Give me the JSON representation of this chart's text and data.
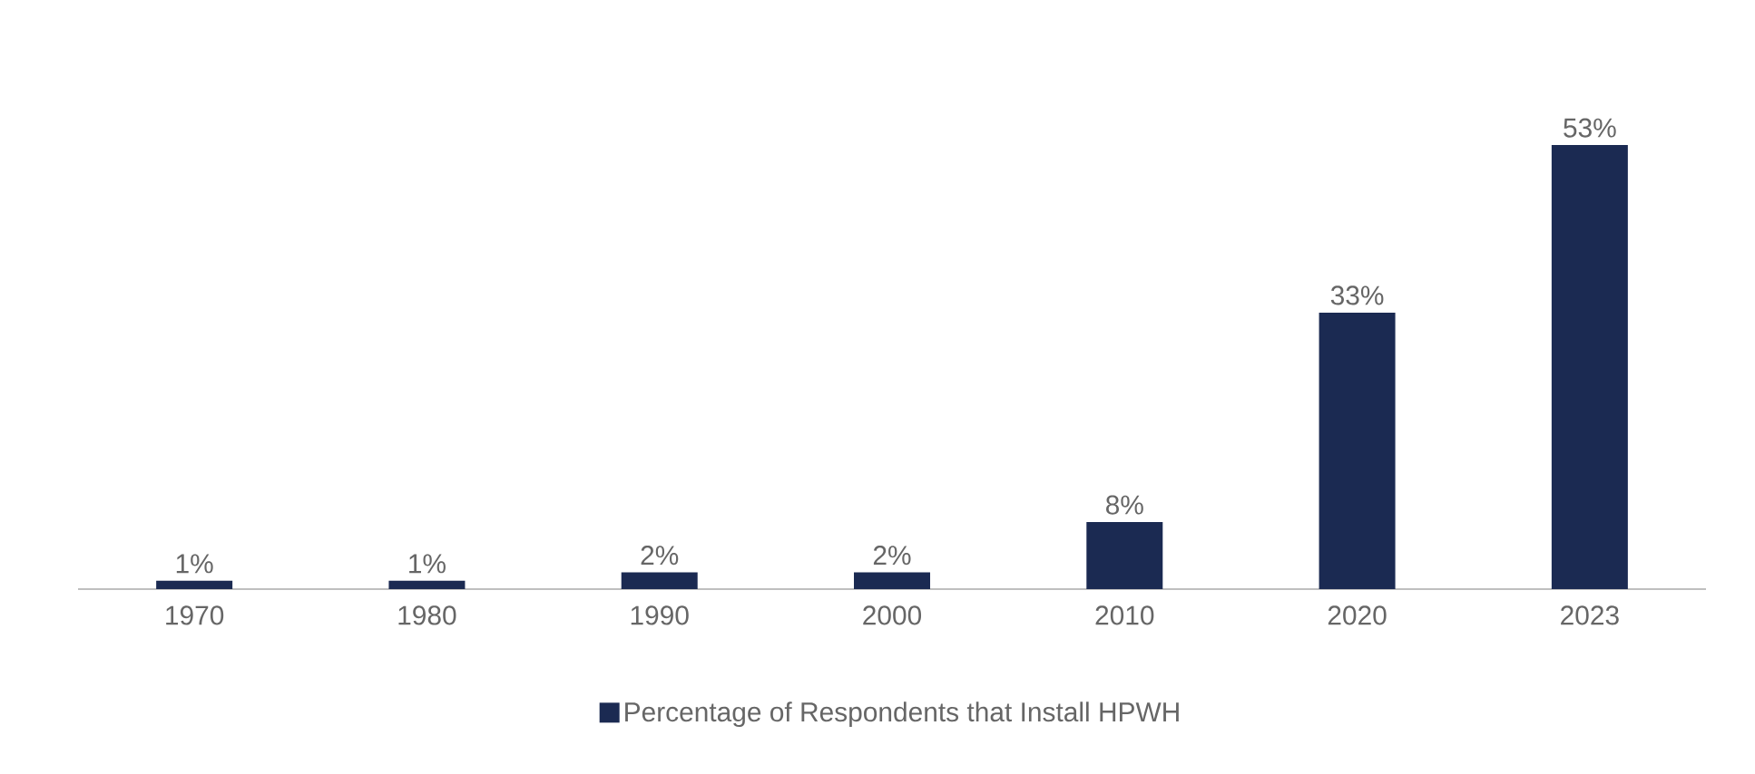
{
  "chart_data": {
    "type": "bar",
    "categories": [
      "1970",
      "1980",
      "1990",
      "2000",
      "2010",
      "2020",
      "2023"
    ],
    "series": [
      {
        "name": "Percentage of Respondents that Install HPWH",
        "color": "#1b2a52",
        "values": [
          1,
          1,
          2,
          2,
          8,
          33,
          53
        ],
        "value_labels": [
          "1%",
          "1%",
          "2%",
          "2%",
          "8%",
          "33%",
          "53%"
        ]
      }
    ],
    "legend": "bottom"
  }
}
